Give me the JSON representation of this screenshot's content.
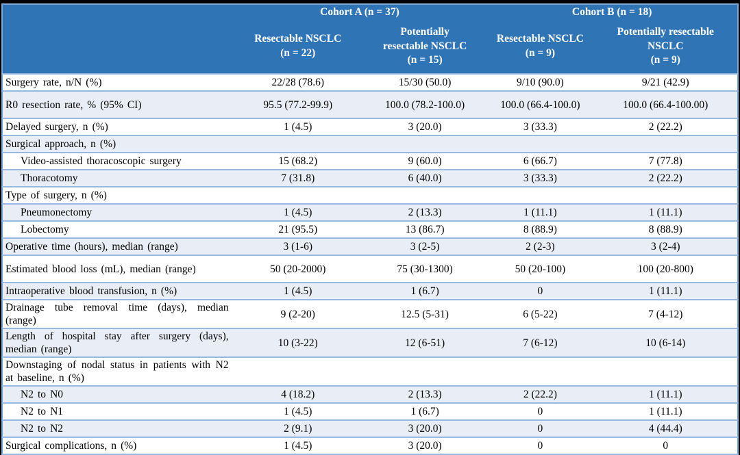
{
  "colors": {
    "header_bg": "#2F74B5",
    "header_text": "#FFFFFF",
    "row_stripe": "#E9EEF6",
    "row_border": "#95B9E0",
    "outer_border": "#7EA6D3",
    "frame": "#000000"
  },
  "table": {
    "header": {
      "corner": "",
      "groups": [
        "Cohort A (n = 37)",
        "Cohort B (n = 18)"
      ],
      "cols": [
        "Resectable NSCLC\n(n = 22)",
        "Potentially\nresectable NSCLC\n(n = 15)",
        "Resectable NSCLC\n(n = 9)",
        "Potentially resectable\nNSCLC\n(n = 9)"
      ]
    },
    "rows": [
      {
        "label": "Surgery rate, n/N (%)",
        "indent": false,
        "tall": false,
        "values": [
          "22/28 (78.6)",
          "15/30 (50.0)",
          "9/10 (90.0)",
          "9/21 (42.9)"
        ]
      },
      {
        "label": "R0 resection rate, % (95% CI)",
        "indent": false,
        "tall": true,
        "values": [
          "95.5 (77.2-99.9)",
          "100.0 (78.2-100.0)",
          "100.0 (66.4-100.0)",
          "100.0 (66.4-100.00)"
        ]
      },
      {
        "label": "Delayed surgery, n (%)",
        "indent": false,
        "tall": false,
        "values": [
          "1 (4.5)",
          "3 (20.0)",
          "3 (33.3)",
          "2 (22.2)"
        ]
      },
      {
        "label": "Surgical approach, n (%)",
        "indent": false,
        "tall": false,
        "values": [
          "",
          "",
          "",
          ""
        ]
      },
      {
        "label": "Video-assisted thoracoscopic surgery",
        "indent": true,
        "tall": false,
        "values": [
          "15 (68.2)",
          "9 (60.0)",
          "6 (66.7)",
          "7 (77.8)"
        ]
      },
      {
        "label": "Thoracotomy",
        "indent": true,
        "tall": false,
        "values": [
          "7 (31.8)",
          "6 (40.0)",
          "3 (33.3)",
          "2 (22.2)"
        ]
      },
      {
        "label": "Type of surgery, n (%)",
        "indent": false,
        "tall": false,
        "values": [
          "",
          "",
          "",
          ""
        ]
      },
      {
        "label": "Pneumonectomy",
        "indent": true,
        "tall": false,
        "values": [
          "1 (4.5)",
          "2 (13.3)",
          "1 (11.1)",
          "1 (11.1)"
        ]
      },
      {
        "label": "Lobectomy",
        "indent": true,
        "tall": false,
        "values": [
          "21 (95.5)",
          "13 (86.7)",
          "8 (88.9)",
          "8 (88.9)"
        ]
      },
      {
        "label": "Operative time (hours), median (range)",
        "indent": false,
        "tall": false,
        "values": [
          "3 (1-6)",
          "3 (2-5)",
          "2 (2-3)",
          "3 (2-4)"
        ]
      },
      {
        "label": "Estimated blood loss (mL), median (range)",
        "indent": false,
        "tall": true,
        "values": [
          "50 (20-2000)",
          "75 (30-1300)",
          "50 (20-100)",
          "100 (20-800)"
        ]
      },
      {
        "label": "Intraoperative blood transfusion, n (%)",
        "indent": false,
        "tall": false,
        "values": [
          "1 (4.5)",
          "1 (6.7)",
          "0",
          "1 (11.1)"
        ]
      },
      {
        "label": "Drainage tube removal time (days), median (range)",
        "indent": false,
        "tall": false,
        "values": [
          "9 (2-20)",
          "12.5 (5-31)",
          "6 (5-22)",
          "7 (4-12)"
        ]
      },
      {
        "label": "Length of hospital stay after surgery (days), median (range)",
        "indent": false,
        "tall": false,
        "values": [
          "10 (3-22)",
          "12 (6-51)",
          "7 (6-12)",
          "10 (6-14)"
        ]
      },
      {
        "label": "Downstaging of nodal status in patients with N2 at baseline, n (%)",
        "indent": false,
        "tall": false,
        "values": [
          "",
          "",
          "",
          ""
        ]
      },
      {
        "label": "N2 to N0",
        "indent": true,
        "tall": false,
        "values": [
          "4 (18.2)",
          "2 (13.3)",
          "2 (22.2)",
          "1 (11.1)"
        ]
      },
      {
        "label": "N2 to N1",
        "indent": true,
        "tall": false,
        "values": [
          "1 (4.5)",
          "1 (6.7)",
          "0",
          "1 (11.1)"
        ]
      },
      {
        "label": "N2 to N2",
        "indent": true,
        "tall": false,
        "values": [
          "2 (9.1)",
          "3 (20.0)",
          "0",
          "4 (44.4)"
        ]
      },
      {
        "label": "Surgical complications, n (%)",
        "indent": false,
        "tall": false,
        "values": [
          "1 (4.5)",
          "3 (20.0)",
          "0",
          "0"
        ]
      }
    ]
  }
}
